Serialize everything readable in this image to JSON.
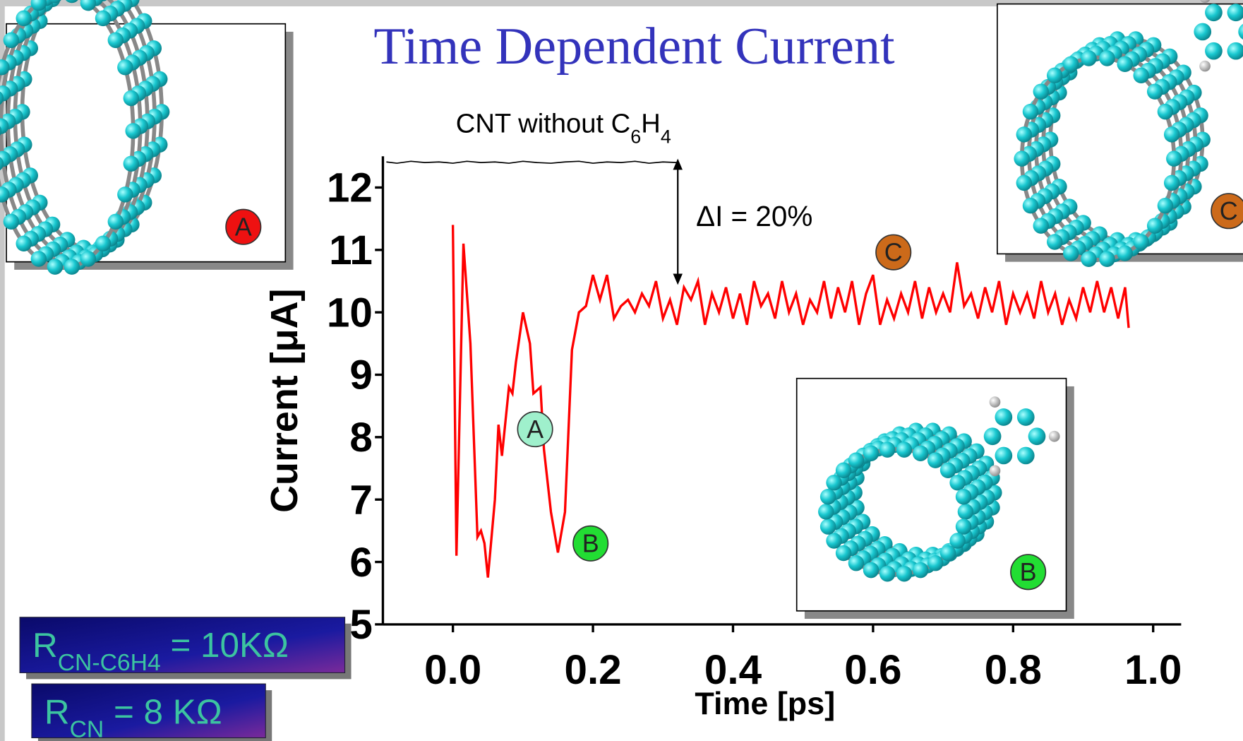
{
  "chart_data": {
    "type": "line",
    "title": "Time Dependent Current",
    "xlabel": "Time [ps]",
    "ylabel": "Current [μA]",
    "xlim": [
      -0.1,
      1.04
    ],
    "ylim": [
      5,
      12.5
    ],
    "xticks": [
      {
        "value": 0,
        "label": "0.0"
      },
      0.2,
      0.4,
      0.6,
      0.8,
      {
        "value": 1,
        "label": "1.0"
      }
    ],
    "yticks": [
      5,
      6,
      7,
      8,
      9,
      10,
      11,
      12
    ],
    "series": [
      {
        "color": "#ff0000",
        "x": [
          0,
          0.005,
          0.015,
          0.025,
          0.035,
          0.04,
          0.045,
          0.05,
          0.06,
          0.065,
          0.07,
          0.08,
          0.085,
          0.09,
          0.1,
          0.11,
          0.115,
          0.125,
          0.13,
          0.14,
          0.15,
          0.16,
          0.17,
          0.18,
          0.19,
          0.2,
          0.21,
          0.22,
          0.23,
          0.24,
          0.25,
          0.26,
          0.27,
          0.28,
          0.29,
          0.3,
          0.31,
          0.32,
          0.33,
          0.34,
          0.35,
          0.36,
          0.37,
          0.38,
          0.39,
          0.4,
          0.41,
          0.42,
          0.43,
          0.44,
          0.45,
          0.46,
          0.47,
          0.48,
          0.49,
          0.5,
          0.51,
          0.52,
          0.53,
          0.54,
          0.55,
          0.56,
          0.57,
          0.58,
          0.59,
          0.6,
          0.61,
          0.62,
          0.63,
          0.64,
          0.65,
          0.66,
          0.67,
          0.68,
          0.69,
          0.7,
          0.71,
          0.72,
          0.73,
          0.74,
          0.75,
          0.76,
          0.77,
          0.78,
          0.79,
          0.8,
          0.81,
          0.82,
          0.83,
          0.84,
          0.85,
          0.86,
          0.87,
          0.88,
          0.89,
          0.9,
          0.91,
          0.92,
          0.93,
          0.94,
          0.95,
          0.96,
          0.965
        ],
        "values": [
          11.4,
          6.1,
          11.1,
          9.5,
          6.4,
          6.5,
          6.3,
          5.75,
          7.0,
          8.2,
          7.7,
          8.8,
          8.7,
          9.2,
          10.0,
          9.5,
          8.7,
          8.8,
          7.8,
          6.8,
          6.15,
          6.8,
          9.4,
          10.0,
          10.1,
          10.6,
          10.2,
          10.6,
          9.9,
          10.1,
          10.2,
          10.0,
          10.3,
          10.1,
          10.5,
          9.9,
          10.2,
          9.8,
          10.4,
          10.2,
          10.5,
          9.8,
          10.3,
          10.0,
          10.4,
          9.9,
          10.3,
          9.8,
          10.5,
          10.1,
          10.3,
          9.9,
          10.5,
          10.0,
          10.3,
          9.8,
          10.2,
          10.0,
          10.5,
          9.9,
          10.4,
          10.0,
          10.5,
          9.8,
          10.3,
          10.6,
          9.8,
          10.2,
          9.9,
          10.3,
          10.0,
          10.5,
          9.9,
          10.4,
          10.0,
          10.3,
          10.0,
          10.8,
          10.1,
          10.3,
          9.9,
          10.4,
          10.0,
          10.5,
          9.8,
          10.3,
          10.0,
          10.3,
          9.9,
          10.5,
          10.0,
          10.3,
          9.8,
          10.2,
          9.9,
          10.4,
          10.0,
          10.5,
          10.0,
          10.4,
          9.9,
          10.4,
          9.75
        ]
      },
      {
        "color": "#000000",
        "x": [
          -0.095,
          -0.08,
          -0.06,
          -0.04,
          -0.02,
          0,
          0.02,
          0.04,
          0.06,
          0.08,
          0.1,
          0.12,
          0.14,
          0.16,
          0.18,
          0.2,
          0.22,
          0.24,
          0.26,
          0.28,
          0.3,
          0.32
        ],
        "values": [
          12.41,
          12.39,
          12.42,
          12.4,
          12.41,
          12.39,
          12.42,
          12.4,
          12.41,
          12.39,
          12.42,
          12.4,
          12.39,
          12.41,
          12.42,
          12.39,
          12.41,
          12.4,
          12.42,
          12.39,
          12.41,
          12.4
        ]
      }
    ],
    "annotations": {
      "reference_label": [
        {
          "t": "CNT without C"
        },
        {
          "t": "6",
          "sub": true
        },
        {
          "t": "H"
        },
        {
          "t": "4",
          "sub": true
        }
      ],
      "delta": "ΔI = 20%",
      "markers": [
        {
          "label": "A",
          "color": "#9ff0cc"
        },
        {
          "label": "B",
          "color": "#22dd33"
        },
        {
          "label": "C",
          "color": "#cc6a1a"
        }
      ],
      "insets": [
        {
          "label": "A",
          "color": "#ee1111"
        },
        {
          "label": "C",
          "color": "#cc6a1a"
        },
        {
          "label": "B",
          "color": "#22dd33"
        }
      ],
      "resistances": [
        [
          {
            "t": "R"
          },
          {
            "t": "CN-C6H4",
            "sub": true
          },
          {
            "t": " = 10KΩ"
          }
        ],
        [
          {
            "t": "R"
          },
          {
            "t": "CN",
            "sub": true
          },
          {
            "t": " = 8 KΩ"
          }
        ]
      ]
    }
  }
}
